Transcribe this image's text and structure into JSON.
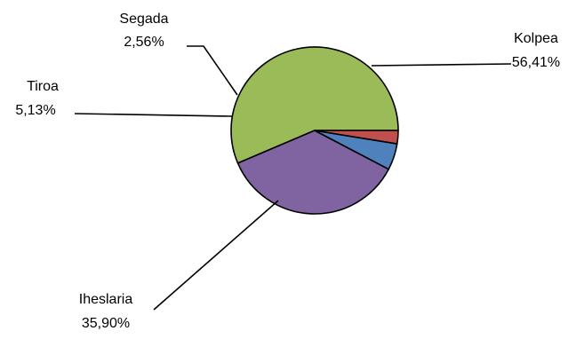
{
  "chart_data": {
    "type": "pie",
    "title": "",
    "slices": [
      {
        "label": "Kolpea",
        "value": 56.41,
        "display": "56,41%",
        "color": "#9BBB59"
      },
      {
        "label": "Iheslaria",
        "value": 35.9,
        "display": "35,90%",
        "color": "#8064A2"
      },
      {
        "label": "Tiroa",
        "value": 5.13,
        "display": "5,13%",
        "color": "#4F81BD"
      },
      {
        "label": "Segada",
        "value": 2.56,
        "display": "2,56%",
        "color": "#C0504D"
      }
    ],
    "start_angle_deg": 0,
    "direction": "counterclockwise",
    "data_labels": "category and percentage with leader lines",
    "legend": "none"
  }
}
